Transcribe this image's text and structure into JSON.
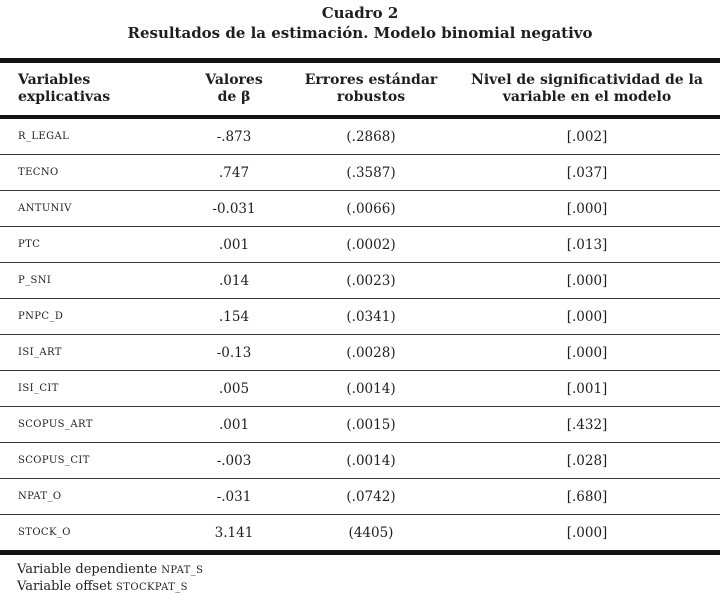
{
  "page": {
    "title": "Cuadro 2",
    "subtitle": "Resultados de la estimación. Modelo binomial negativo"
  },
  "table": {
    "headers": {
      "variables": "Variables explicativas",
      "beta": "Valores\nde β",
      "errors": "Errores estándar\nrobustos",
      "significance": "Nivel de significatividad de la\nvariable en el modelo"
    },
    "rows": [
      {
        "name": "R_LEGAL",
        "beta": "-.873",
        "se": "(.2868)",
        "sig": "[.002]"
      },
      {
        "name": "TECNO",
        "beta": ".747",
        "se": "(.3587)",
        "sig": "[.037]"
      },
      {
        "name": "ANTUNIV",
        "beta": "-0.031",
        "se": "(.0066)",
        "sig": "[.000]"
      },
      {
        "name": "PTC",
        "beta": ".001",
        "se": "(.0002)",
        "sig": "[.013]"
      },
      {
        "name": "P_SNI",
        "beta": ".014",
        "se": "(.0023)",
        "sig": "[.000]"
      },
      {
        "name": "PNPC_D",
        "beta": ".154",
        "se": "(.0341)",
        "sig": "[.000]"
      },
      {
        "name": "ISI_ART",
        "beta": "-0.13",
        "se": "(.0028)",
        "sig": "[.000]"
      },
      {
        "name": "ISI_CIT",
        "beta": ".005",
        "se": "(.0014)",
        "sig": "[.001]"
      },
      {
        "name": "SCOPUS_ART",
        "beta": ".001",
        "se": "(.0015)",
        "sig": "[.432]"
      },
      {
        "name": "SCOPUS_CIT",
        "beta": "-.003",
        "se": "(.0014)",
        "sig": "[.028]"
      },
      {
        "name": "NPAT_O",
        "beta": "-.031",
        "se": "(.0742)",
        "sig": "[.680]"
      },
      {
        "name": "STOCK_O",
        "beta": "3.141",
        "se": "(4405)",
        "sig": "[.000]"
      }
    ]
  },
  "footnotes": [
    {
      "label": "Variable dependiente",
      "variable": "NPAT_S"
    },
    {
      "label": "Variable offset",
      "variable": "STOCKPAT_S"
    }
  ],
  "colors": {
    "ink": "#1e1e1e",
    "rule_heavy": "#121212",
    "rule_light": "#3c3c3c",
    "background": "#ffffff"
  }
}
